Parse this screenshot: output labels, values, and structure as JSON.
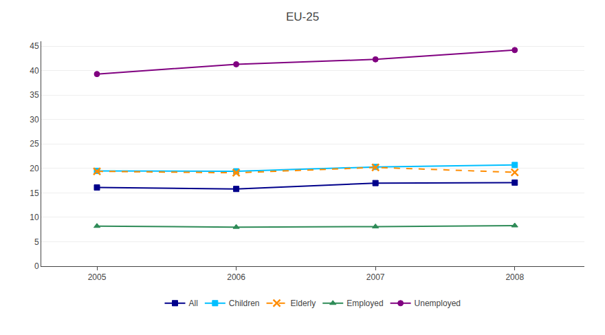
{
  "chart_data": {
    "type": "line",
    "title": "EU-25",
    "x": [
      2005,
      2006,
      2007,
      2008
    ],
    "series": [
      {
        "name": "All",
        "color": "#00008B",
        "values": [
          16.1,
          15.8,
          17.0,
          17.1
        ],
        "marker": "square",
        "line_style": "solid"
      },
      {
        "name": "Children",
        "color": "#00BFFF",
        "values": [
          19.5,
          19.4,
          20.3,
          20.7
        ],
        "marker": "square",
        "line_style": "solid"
      },
      {
        "name": "Elderly",
        "color": "#FF8C00",
        "values": [
          19.4,
          19.1,
          20.2,
          19.2
        ],
        "marker": "x",
        "line_style": "dash"
      },
      {
        "name": "Employed",
        "color": "#2E8B57",
        "values": [
          8.2,
          8.0,
          8.1,
          8.3
        ],
        "marker": "triangle",
        "line_style": "solid"
      },
      {
        "name": "Unemployed",
        "color": "#800080",
        "values": [
          39.3,
          41.3,
          42.3,
          44.2
        ],
        "marker": "circle",
        "line_style": "solid"
      }
    ],
    "xlim": [
      2004.6,
      2008.5
    ],
    "xticks": [
      2005,
      2006,
      2007,
      2008
    ],
    "ylim": [
      0,
      46
    ],
    "yticks": [
      0,
      5,
      10,
      15,
      20,
      25,
      30,
      35,
      40,
      45
    ],
    "grid": "y",
    "legend": "bottom"
  }
}
